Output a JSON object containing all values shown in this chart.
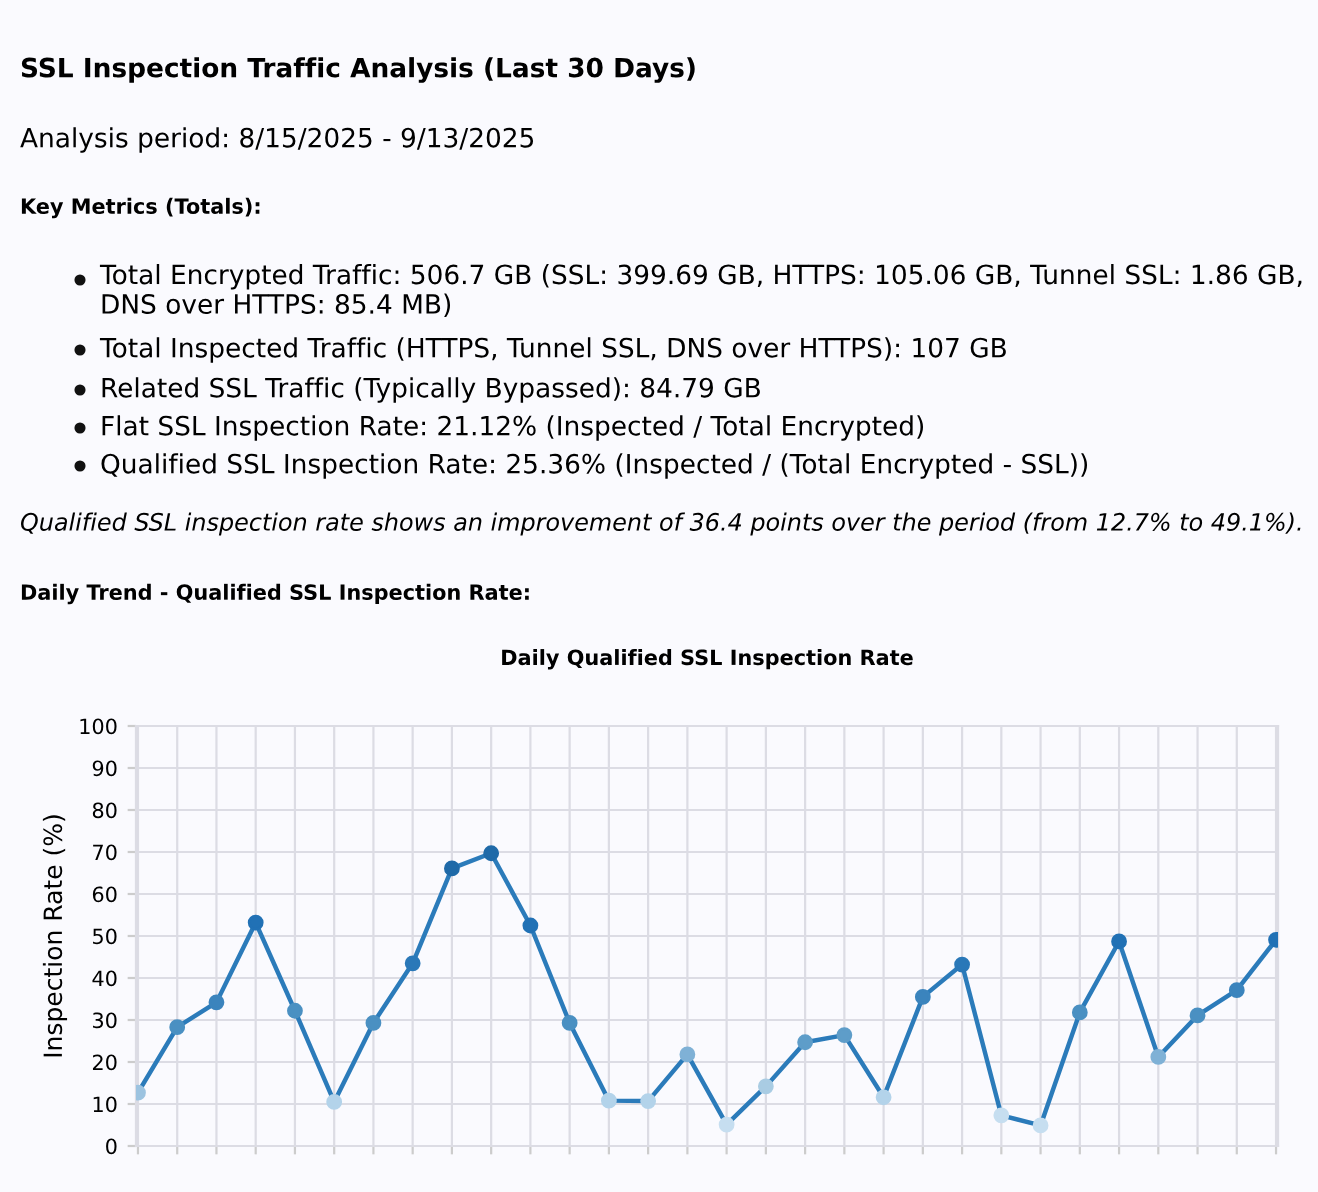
{
  "chart_data": {
    "type": "line",
    "title": "Daily Qualified SSL Inspection Rate",
    "ylabel": "Inspection Rate (%)",
    "annotations": [
      "SSL Inspection Traffic Analysis (Last 30 Days)",
      "Analysis period: 8/15/2025 - 9/13/2025",
      "Key Metrics (Totals):",
      "Total Encrypted Traffic: 506.7 GB (SSL: 399.69 GB, HTTPS: 105.06 GB, Tunnel SSL: 1.86 GB, DNS over HTTPS: 85.4 MB)",
      "Total Inspected Traffic (HTTPS, Tunnel SSL, DNS over HTTPS): 107 GB",
      "Related SSL Traffic (Typically Bypassed): 84.79 GB",
      "Flat SSL Inspection Rate: 21.12% (Inspected / Total Encrypted)",
      "Qualified SSL Inspection Rate: 25.36% (Inspected / (Total Encrypted - SSL))",
      "Qualified SSL inspection rate shows an improvement of 36.4 points over the period (from 12.7% to 49.1%).",
      "Daily Trend - Qualified SSL Inspection Rate:"
    ],
    "categories": [
      null,
      null,
      null,
      null,
      null,
      null,
      null,
      null,
      null,
      null,
      null,
      null,
      null,
      null,
      null,
      null,
      null,
      null,
      null,
      null,
      null,
      null,
      null,
      null,
      null,
      null,
      null,
      null,
      null,
      null
    ],
    "series": [
      {
        "color": "#2b7bba",
        "values": [
          12.7,
          28.3,
          34.2,
          53.2,
          32.2,
          10.5,
          29.3,
          43.5,
          66.1,
          69.7,
          52.5,
          29.3,
          10.8,
          10.7,
          21.8,
          5.1,
          14.2,
          24.7,
          26.4,
          11.6,
          35.5,
          43.2,
          7.3,
          4.9,
          31.8,
          48.7,
          21.2,
          31.1,
          37.1,
          49.1
        ],
        "colors": [
          "#9cc3e0",
          "#4a90c2",
          "#3b84bd",
          "#2171b5",
          "#4a90c2",
          "#b3d3ea",
          "#4a90c2",
          "#2a78b8",
          "#1f6aa8",
          "#1f6aa8",
          "#2171b5",
          "#4a90c2",
          "#b3d3ea",
          "#b3d3ea",
          "#7fb1d6",
          "#c6def0",
          "#a9cce3",
          "#5e9dc9",
          "#5e9dc9",
          "#b3d3ea",
          "#3b84bd",
          "#2a78b8",
          "#c6def0",
          "#c6def0",
          "#4a90c2",
          "#2171b5",
          "#7fb1d6",
          "#4a90c2",
          "#3b84bd",
          "#2171b5"
        ]
      }
    ],
    "ylim": [
      0,
      100
    ],
    "yticks": [
      0,
      10,
      20,
      30,
      40,
      50,
      60,
      70,
      80,
      90,
      100
    ],
    "grid": true,
    "marker": "circle",
    "line_style": "solid"
  }
}
